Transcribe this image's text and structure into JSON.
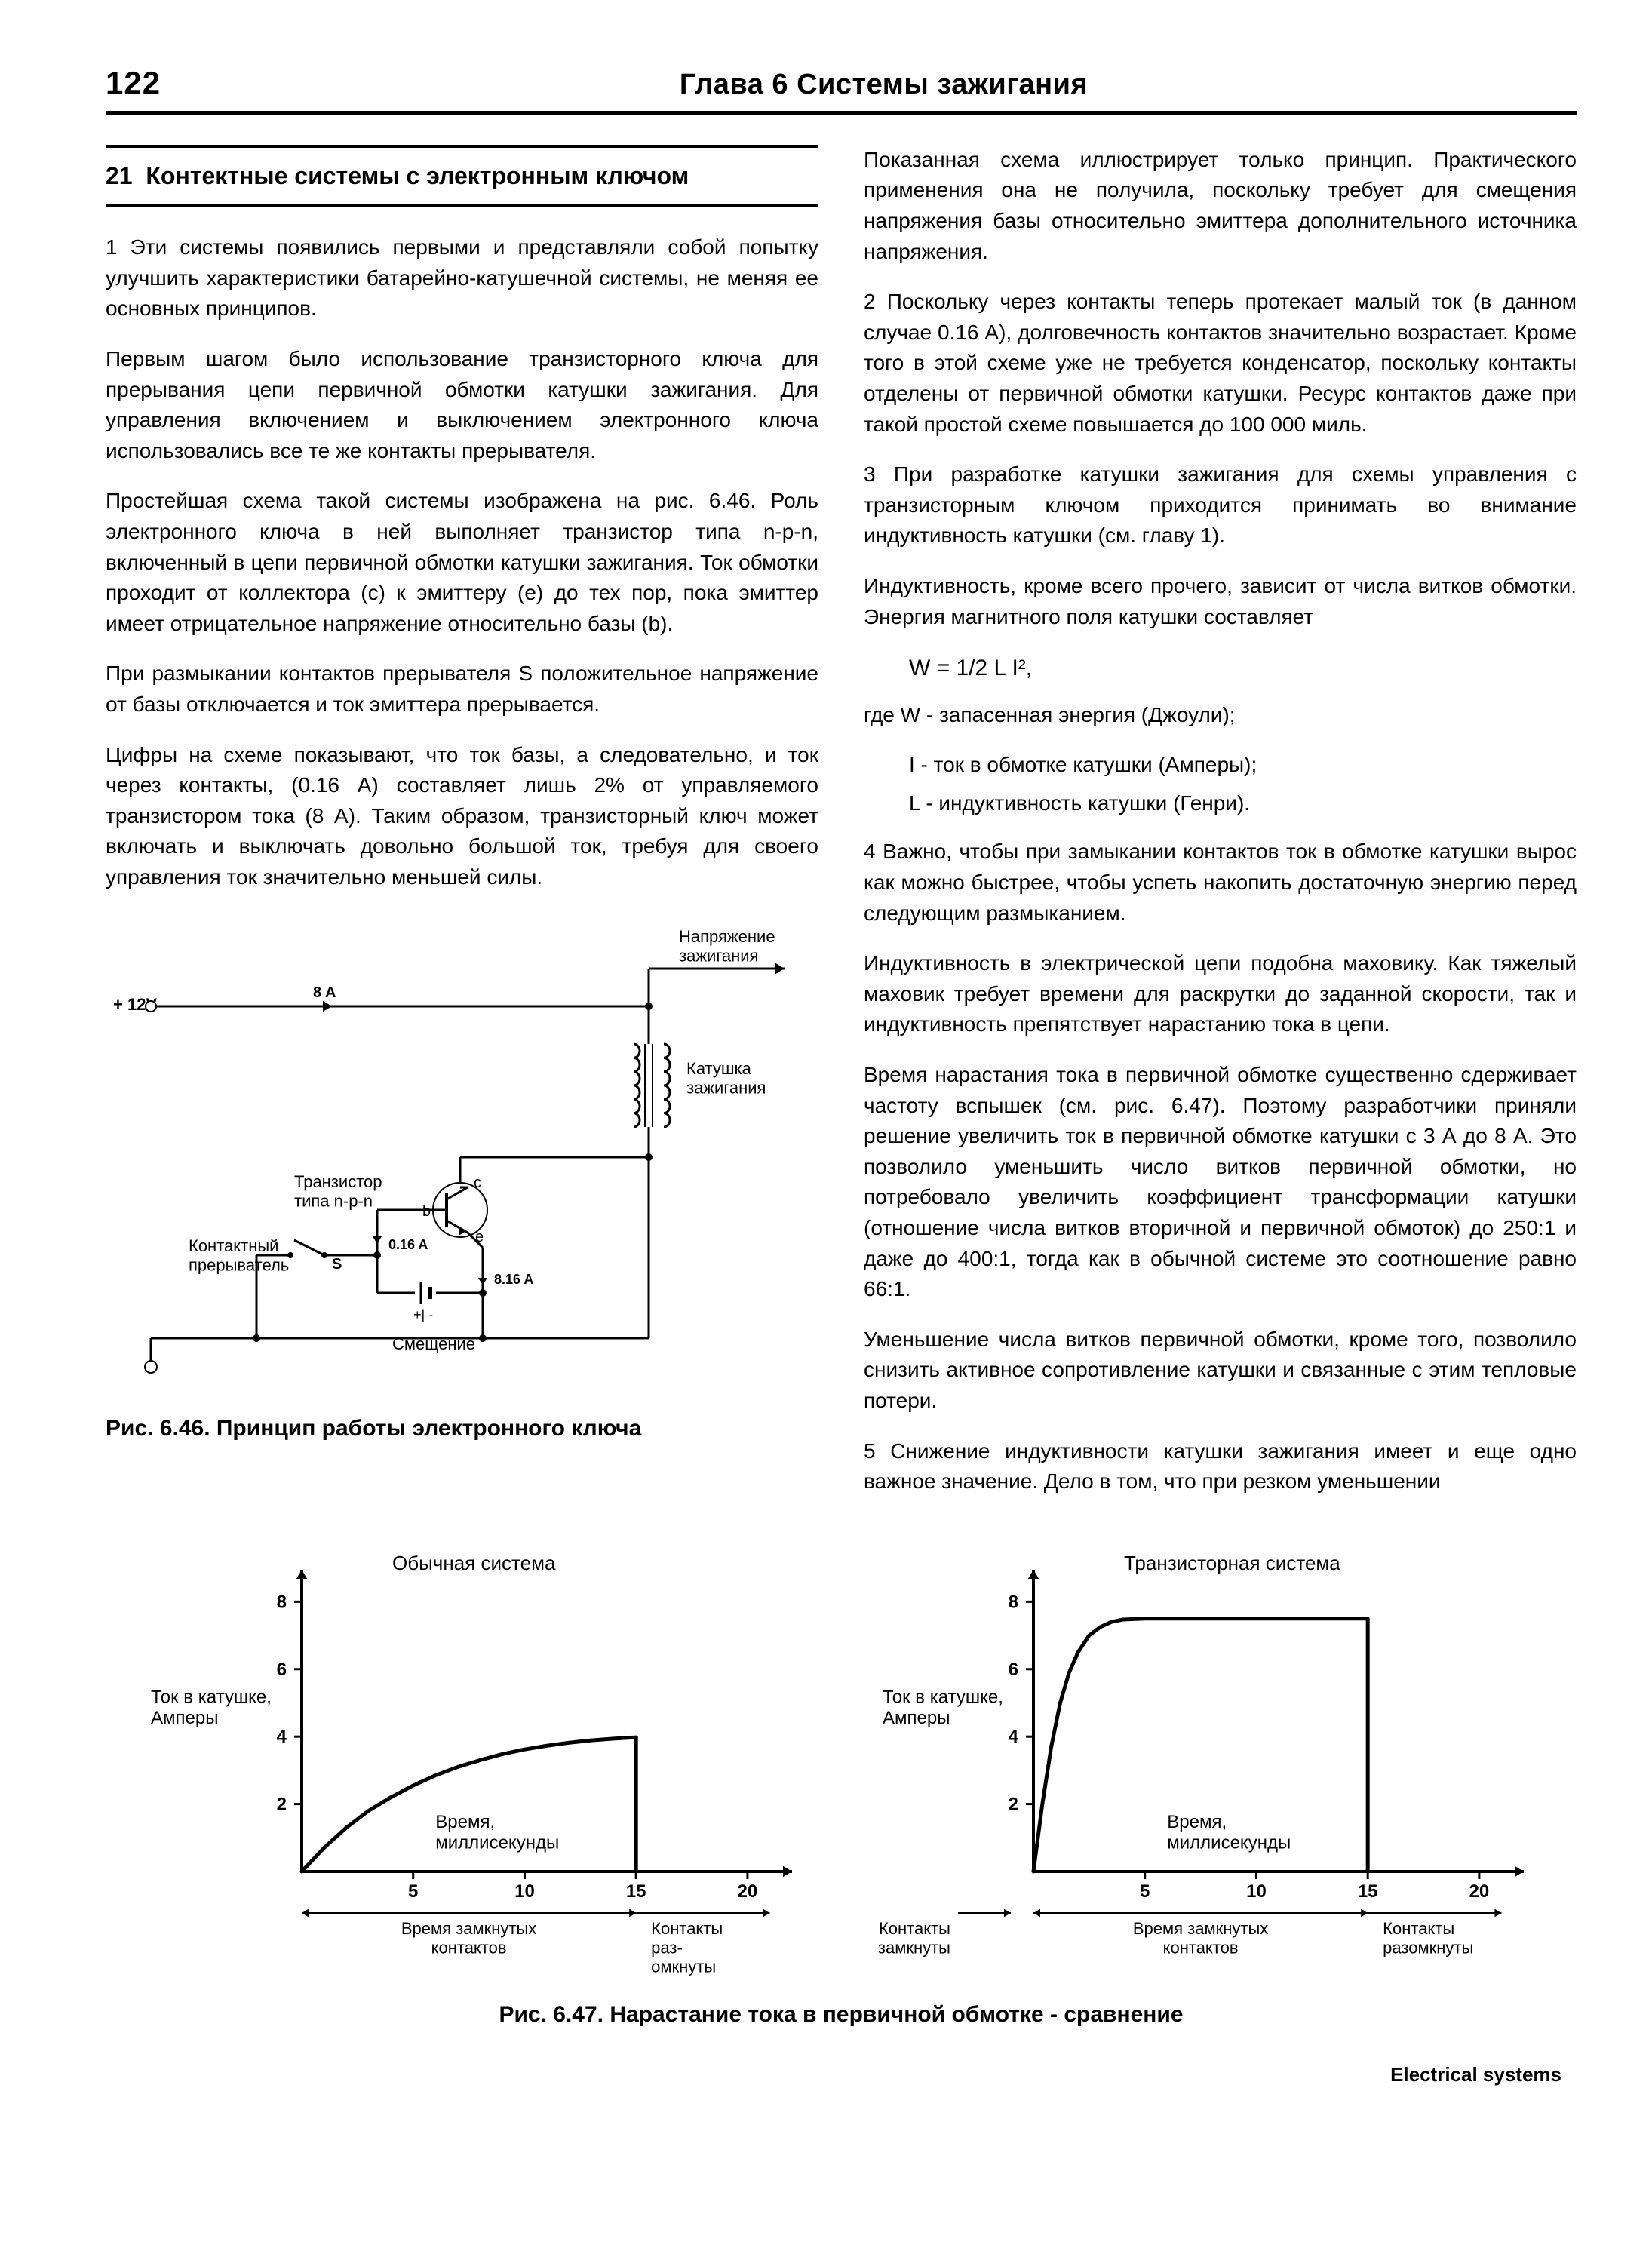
{
  "header": {
    "page_number": "122",
    "chapter": "Глава 6 Системы зажигания"
  },
  "section": {
    "number": "21",
    "title": "Контектные системы с электронным ключом"
  },
  "left_paras": [
    "1   Эти системы появились первыми и представляли собой попытку улучшить характеристики батарейно-катушечной системы, не меняя ее основных принципов.",
    "Первым шагом было использование транзисторного ключа для прерывания цепи первичной обмотки катушки зажигания. Для управления включением и выключением электронного ключа использовались все те же контакты прерывателя.",
    "Простейшая схема такой системы изображена на рис. 6.46. Роль электронного ключа в ней выполняет транзистор типа n-p-n, включенный в цепи первичной обмотки катушки зажигания. Ток обмотки проходит от коллектора (c) к эмиттеру (e) до тех пор, пока эмиттер имеет отрицательное напряжение относительно базы (b).",
    "При размыкании контактов прерывателя S положительное напряжение от базы отключается и ток эмиттера прерывается.",
    "Цифры на схеме показывают, что ток базы, а следовательно, и ток через контакты, (0.16 А) составляет лишь 2% от управляемого транзистором тока (8 А). Таким образом, транзисторный ключ может включать и выключать довольно большой ток, требуя для своего управления ток значительно меньшей силы."
  ],
  "right_paras_1": [
    "Показанная схема иллюстрирует только принцип. Практического применения она не получила, поскольку требует для смещения напряжения базы относительно эмиттера дополнительного источника напряжения.",
    "2   Поскольку через контакты теперь протекает малый ток (в данном случае 0.16 А), долговечность контактов значительно возрастает. Кроме того в этой схеме уже не требуется конденсатор, поскольку контакты отделены от первичной обмотки катушки. Ресурс контактов даже при такой простой схеме повышается до 100 000 миль.",
    "3   При разработке катушки зажигания для схемы управления с транзисторным ключом приходится принимать во внимание индуктивность катушки (см. главу 1).",
    "Индуктивность, кроме всего прочего, зависит от числа витков обмотки. Энергия магнитного поля катушки составляет"
  ],
  "formula": "W = 1/2 L I²,",
  "where_line": "где W - запасенная энергия (Джоули);",
  "sublist": [
    "I  - ток в обмотке катушки (Амперы);",
    "L - индуктивность катушки (Генри)."
  ],
  "right_paras_2": [
    "4   Важно, чтобы при замыкании контактов ток в обмотке катушки вырос как можно быстрее, чтобы успеть накопить достаточную энергию перед следующим размыканием.",
    "Индуктивность в электрической цепи подобна маховику. Как тяжелый маховик требует времени для раскрутки до заданной скорости, так и индуктивность препятствует нарастанию тока в цепи.",
    "Время нарастания тока в первичной обмотке существенно сдерживает частоту вспышек (см. рис. 6.47). Поэтому разработчи­ки приняли решение увеличить ток в первичной обмотке катушки с 3 А до 8 А. Это позволило уменьшить число витков первичной обмотки, но потребовало увеличить коэффициент трансформации катушки (отношение числа витков вторичной и первичной обмоток) до 250:1 и даже до 400:1, тогда как в обычной системе это соотношение равно 66:1.",
    "Уменьшение числа витков первичной обмотки, кроме того, позволило снизить активное сопротивление катушки и связанные с этим тепловые потери.",
    "5   Снижение индуктивности катушки зажигания имеет и еще одно важное значение. Дело в том, что при резком уменьшении"
  ],
  "fig646": {
    "caption": "Рис. 6.46. Принцип работы электронного ключа",
    "labels": {
      "v12": "+ 12V",
      "ia": "8 A",
      "volt_ign": "Напряжение\nзажигания",
      "coil": "Катушка\nзажигания",
      "transistor": "Транзистор\nтипа n-p-n",
      "contact": "Контактный\nпрерыватель",
      "bias": "Смещение",
      "c": "c",
      "b": "b",
      "e": "e",
      "s": "S",
      "i016": "0.16 A",
      "i816": "8.16 A",
      "plusminus": "+| -"
    },
    "colors": {
      "stroke": "#000",
      "fill": "#fff"
    },
    "line_width": 3
  },
  "fig647": {
    "caption": "Рис. 6.47. Нарастание тока в первичной обмотке - сравнение",
    "panel_left": {
      "title": "Обычная система",
      "ylabel": "Ток в катушке,\nАмперы",
      "xlabel": "Время,\nмиллисекунды",
      "yticks": [
        2,
        4,
        6,
        8
      ],
      "xticks": [
        5,
        10,
        15,
        20
      ],
      "closed_label": "Время замкнутых\nконтактов",
      "open_label": "Контакты\nраз-\nомкнуты",
      "closed_range": [
        0,
        15
      ],
      "curve": [
        [
          0,
          0
        ],
        [
          1,
          0.7
        ],
        [
          2,
          1.3
        ],
        [
          3,
          1.8
        ],
        [
          4,
          2.2
        ],
        [
          5,
          2.55
        ],
        [
          6,
          2.85
        ],
        [
          7,
          3.1
        ],
        [
          8,
          3.3
        ],
        [
          9,
          3.48
        ],
        [
          10,
          3.62
        ],
        [
          11,
          3.73
        ],
        [
          12,
          3.82
        ],
        [
          13,
          3.89
        ],
        [
          14,
          3.94
        ],
        [
          15,
          3.98
        ]
      ],
      "max_y": 4.0
    },
    "panel_right": {
      "title": "Транзисторная система",
      "ylabel": "Ток в катушке,\nАмперы",
      "xlabel": "Время,\nмиллисекунды",
      "yticks": [
        2,
        4,
        6,
        8
      ],
      "xticks": [
        5,
        10,
        15,
        20
      ],
      "closed_label": "Время замкнутых\nконтактов",
      "open_label": "Контакты\nразомкнуты",
      "open2_label": "Контакты\nзамкнуты",
      "closed_range": [
        0,
        15
      ],
      "curve": [
        [
          0,
          0
        ],
        [
          0.4,
          2
        ],
        [
          0.8,
          3.7
        ],
        [
          1.2,
          5
        ],
        [
          1.6,
          5.9
        ],
        [
          2,
          6.5
        ],
        [
          2.5,
          7
        ],
        [
          3,
          7.25
        ],
        [
          3.5,
          7.4
        ],
        [
          4,
          7.47
        ],
        [
          5,
          7.5
        ],
        [
          15,
          7.5
        ]
      ],
      "max_y": 7.5
    },
    "axis": {
      "ymax": 8.5,
      "xmax": 22,
      "color": "#000",
      "bg": "#fff",
      "axis_width": 4,
      "curve_width": 5,
      "tick_font": 24,
      "label_font": 24,
      "title_font": 26
    }
  },
  "footer": "Electrical systems"
}
